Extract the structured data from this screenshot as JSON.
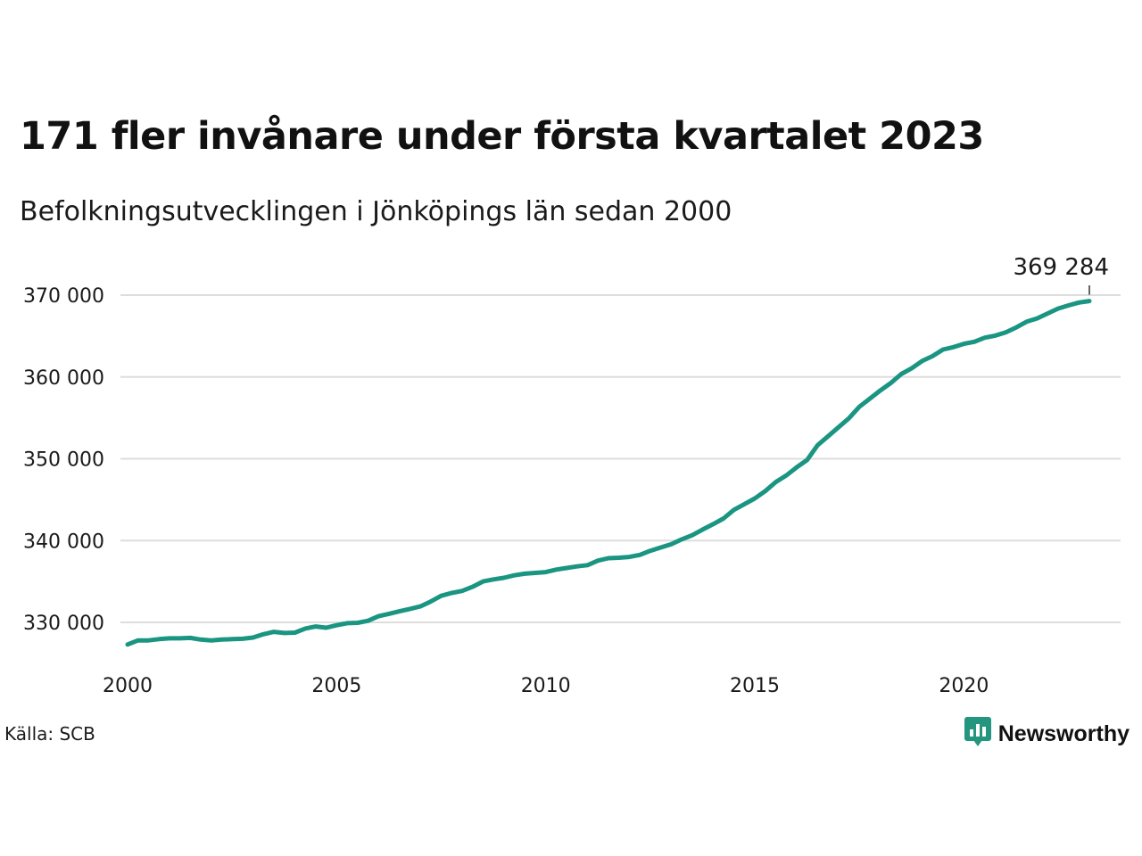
{
  "colors": {
    "line": "#1a9582",
    "grid": "#dddddd",
    "text": "#1a1a1a",
    "brand": "#24957f"
  },
  "header": {
    "title": "171 fler invånare under första kvartalet 2023",
    "subtitle": "Befolkningsutvecklingen i Jönköpings län sedan 2000"
  },
  "footer": {
    "source": "Källa: SCB",
    "brand_name": "Newsworthy",
    "brand_icon": "bar-chart-speech-bubble-icon"
  },
  "chart_data": {
    "type": "line",
    "title": "171 fler invånare under första kvartalet 2023",
    "subtitle": "Befolkningsutvecklingen i Jönköpings län sedan 2000",
    "xlabel": "",
    "ylabel": "",
    "xlim": [
      2000,
      2024.2
    ],
    "ylim": [
      325000,
      372000
    ],
    "grid": true,
    "legend": "none",
    "x_ticks": [
      {
        "value": 2000,
        "label": "2000"
      },
      {
        "value": 2005,
        "label": "2005"
      },
      {
        "value": 2010,
        "label": "2010"
      },
      {
        "value": 2015,
        "label": "2015"
      },
      {
        "value": 2020,
        "label": "2020"
      }
    ],
    "y_ticks": [
      {
        "value": 330000,
        "label": "330 000"
      },
      {
        "value": 340000,
        "label": "340 000"
      },
      {
        "value": 350000,
        "label": "350 000"
      },
      {
        "value": 360000,
        "label": "360 000"
      },
      {
        "value": 370000,
        "label": "370 000"
      }
    ],
    "end_label": {
      "x": 2023.0,
      "y": 369284,
      "label": "369 284"
    },
    "series": [
      {
        "x": [
          2000.0,
          2000.25,
          2000.5,
          2000.75,
          2001.0,
          2001.25,
          2001.5,
          2001.75,
          2002.0,
          2002.25,
          2002.5,
          2002.75,
          2003.0,
          2003.25,
          2003.5,
          2003.75,
          2004.0,
          2004.25,
          2004.5,
          2004.75,
          2005.0,
          2005.25,
          2005.5,
          2005.75,
          2006.0,
          2006.25,
          2006.5,
          2006.75,
          2007.0,
          2007.25,
          2007.5,
          2007.75,
          2008.0,
          2008.25,
          2008.5,
          2008.75,
          2009.0,
          2009.25,
          2009.5,
          2009.75,
          2010.0,
          2010.25,
          2010.5,
          2010.75,
          2011.0,
          2011.25,
          2011.5,
          2011.75,
          2012.0,
          2012.25,
          2012.5,
          2012.75,
          2013.0,
          2013.25,
          2013.5,
          2013.75,
          2014.0,
          2014.25,
          2014.5,
          2014.75,
          2015.0,
          2015.25,
          2015.5,
          2015.75,
          2016.0,
          2016.25,
          2016.5,
          2016.75,
          2017.0,
          2017.25,
          2017.5,
          2017.75,
          2018.0,
          2018.25,
          2018.5,
          2018.75,
          2019.0,
          2019.25,
          2019.5,
          2019.75,
          2020.0,
          2020.25,
          2020.5,
          2020.75,
          2021.0,
          2021.25,
          2021.5,
          2021.75,
          2022.0,
          2022.25,
          2022.5,
          2022.75,
          2023.0
        ],
        "values": [
          327300,
          327800,
          327800,
          327950,
          328050,
          328050,
          328100,
          327900,
          327800,
          327900,
          327950,
          328000,
          328150,
          328550,
          328850,
          328700,
          328750,
          329250,
          329500,
          329350,
          329650,
          329900,
          329950,
          330200,
          330750,
          331050,
          331350,
          331650,
          331950,
          332550,
          333250,
          333600,
          333850,
          334350,
          335000,
          335250,
          335450,
          335750,
          335950,
          336050,
          336150,
          336450,
          336650,
          336850,
          337000,
          337550,
          337850,
          337900,
          338000,
          338250,
          338750,
          339150,
          339550,
          340150,
          340650,
          341350,
          342000,
          342700,
          343750,
          344450,
          345150,
          346050,
          347150,
          347950,
          348950,
          349850,
          351650,
          352750,
          353850,
          354950,
          356350,
          357350,
          358350,
          359250,
          360350,
          361050,
          361950,
          362550,
          363350,
          363650,
          364050,
          364300,
          364800,
          365050,
          365450,
          366050,
          366750,
          367150,
          367750,
          368350,
          368750,
          369100,
          369284
        ]
      }
    ]
  }
}
